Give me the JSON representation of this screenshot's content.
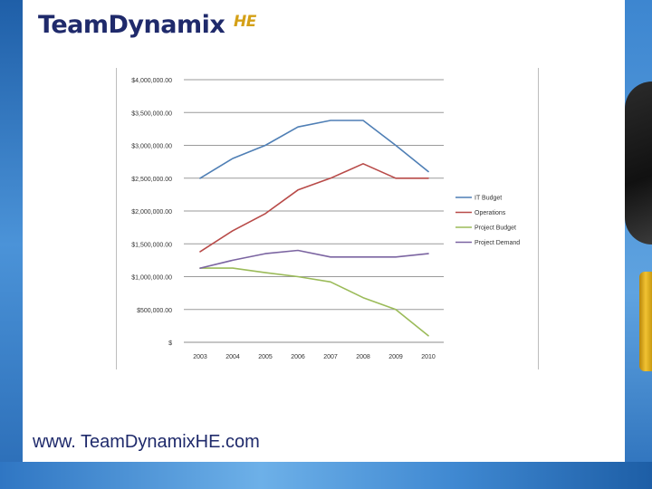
{
  "logo": {
    "team": "Team",
    "dynamix": "Dynamix",
    "he": "HE"
  },
  "footer": {
    "url": "www. TeamDynamixHE.com"
  },
  "colors": {
    "it_budget": "#4f7fb5",
    "operations": "#b84a48",
    "project_budget": "#9bbb59",
    "project_demand": "#7b64a1",
    "brand_navy": "#1f2a6b",
    "brand_gold": "#d4a017"
  },
  "chart_data": {
    "type": "line",
    "x": [
      "2003",
      "2004",
      "2005",
      "2006",
      "2007",
      "2008",
      "2009",
      "2010"
    ],
    "y_tick_labels": [
      "$",
      "$500,000.00",
      "$1,000,000.00",
      "$1,500,000.00",
      "$2,000,000.00",
      "$2,500,000.00",
      "$3,000,000.00",
      "$3,500,000.00",
      "$4,000,000.00"
    ],
    "ylim": [
      0,
      4000000
    ],
    "grid": true,
    "legend": "right",
    "series": [
      {
        "name": "IT Budget",
        "values": [
          2500000,
          2800000,
          3000000,
          3280000,
          3380000,
          3380000,
          3000000,
          2600000
        ]
      },
      {
        "name": "Operations",
        "values": [
          1380000,
          1700000,
          1960000,
          2320000,
          2500000,
          2720000,
          2500000,
          2500000
        ]
      },
      {
        "name": "Project Budget",
        "values": [
          1130000,
          1130000,
          1060000,
          1000000,
          920000,
          680000,
          500000,
          100000
        ]
      },
      {
        "name": "Project Demand",
        "values": [
          1130000,
          1250000,
          1350000,
          1400000,
          1300000,
          1300000,
          1300000,
          1350000
        ]
      }
    ]
  }
}
